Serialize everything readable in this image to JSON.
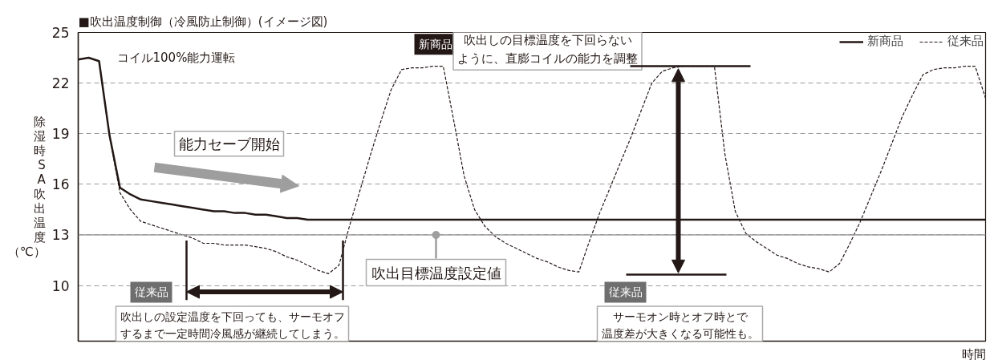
{
  "chart_data": {
    "type": "line",
    "title": "■吹出温度制御（冷風防止制御）(イメージ図)",
    "xlabel": "時間",
    "ylabel": "除湿時SA吹出温度（℃）",
    "categories": [
      null,
      null,
      null,
      null,
      null,
      null,
      null,
      null,
      null,
      null,
      null,
      null,
      null,
      null,
      null,
      null,
      null,
      null,
      null,
      null,
      null,
      null,
      null,
      null,
      null,
      null,
      null,
      null,
      null,
      null,
      null,
      null,
      null,
      null,
      null,
      null,
      null,
      null,
      null,
      null,
      null,
      null,
      null,
      null,
      null,
      null,
      null,
      null,
      null,
      null,
      null,
      null,
      null,
      null,
      null,
      null,
      null,
      null,
      null,
      null,
      null,
      null,
      null,
      null,
      null,
      null,
      null,
      null,
      null,
      null,
      null,
      null,
      null,
      null,
      null,
      null,
      null,
      null,
      null,
      null,
      null,
      null,
      null,
      null,
      null,
      null,
      null,
      null
    ],
    "ylim": [
      6.7,
      25
    ],
    "yticks": [
      10,
      13,
      16,
      19,
      22,
      25
    ],
    "grid": "y",
    "legend": "top right",
    "series": [
      {
        "name": "新商品",
        "color": "#231815",
        "line_style": "solid",
        "values": [
          23.4,
          23.5,
          23.3,
          18.9,
          15.8,
          15.4,
          15.1,
          15.0,
          14.9,
          14.8,
          14.7,
          14.6,
          14.5,
          14.4,
          14.4,
          14.3,
          14.3,
          14.2,
          14.2,
          14.1,
          14.0,
          14.0,
          13.9,
          13.9,
          13.9,
          13.9,
          13.9,
          13.9,
          13.9,
          13.9,
          13.9,
          13.9,
          13.9,
          13.9,
          13.9,
          13.9,
          13.9,
          13.9,
          13.9,
          13.9,
          13.9,
          13.9,
          13.9,
          13.9,
          13.9,
          13.9,
          13.9,
          13.9,
          13.9,
          13.9,
          13.9,
          13.9,
          13.9,
          13.9,
          13.9,
          13.9,
          13.9,
          13.9,
          13.9,
          13.9,
          13.9,
          13.9,
          13.9,
          13.9,
          13.9,
          13.9,
          13.9,
          13.9,
          13.9,
          13.9,
          13.9,
          13.9,
          13.9,
          13.9,
          13.9,
          13.9,
          13.9,
          13.9,
          13.9,
          13.9,
          13.9,
          13.9,
          13.9,
          13.9,
          13.9,
          13.9,
          13.9,
          13.9
        ]
      },
      {
        "name": "従来品",
        "color": "#231815",
        "line_style": "dashed",
        "values": [
          23.4,
          23.5,
          23.3,
          18.9,
          15.5,
          14.5,
          13.8,
          13.6,
          13.4,
          13.2,
          13.0,
          12.8,
          12.5,
          12.5,
          12.4,
          12.4,
          12.4,
          12.3,
          12.2,
          12.0,
          11.7,
          11.5,
          11.2,
          10.9,
          10.7,
          11.2,
          13.5,
          15.6,
          17.7,
          19.7,
          21.6,
          22.8,
          22.9,
          22.9,
          23.0,
          23.0,
          19.8,
          16.5,
          14.5,
          13.5,
          12.9,
          12.5,
          12.2,
          11.9,
          11.6,
          11.4,
          11.1,
          10.9,
          10.8,
          12.6,
          14.3,
          15.8,
          17.3,
          18.8,
          20.4,
          22.0,
          22.7,
          22.9,
          23.0,
          23.0,
          23.0,
          23.0,
          17.8,
          14.4,
          13.1,
          12.6,
          12.2,
          11.8,
          11.6,
          11.3,
          11.1,
          11.0,
          10.8,
          11.3,
          12.5,
          13.8,
          15.3,
          16.8,
          18.4,
          20.0,
          21.3,
          22.5,
          22.8,
          22.9,
          22.9,
          23.0,
          23.0,
          21.1
        ]
      }
    ],
    "ref_lines": [
      {
        "axis": "y",
        "value": 13,
        "label": "吹出目標温度設定値",
        "color": "#9e9e9e"
      }
    ],
    "annotations": [
      "コイル100%能力運転",
      "能力セーブ開始",
      "新商品",
      "吹出しの目標温度を下回らないように、直膨コイルの能力を調整",
      "従来品",
      "吹出しの設定温度を下回っても、サーモオフするまで一定時間冷風感が継続してしまう。",
      "従来品",
      "サーモオン時とオフ時とで温度差が大きくなる可能性も。"
    ]
  }
}
